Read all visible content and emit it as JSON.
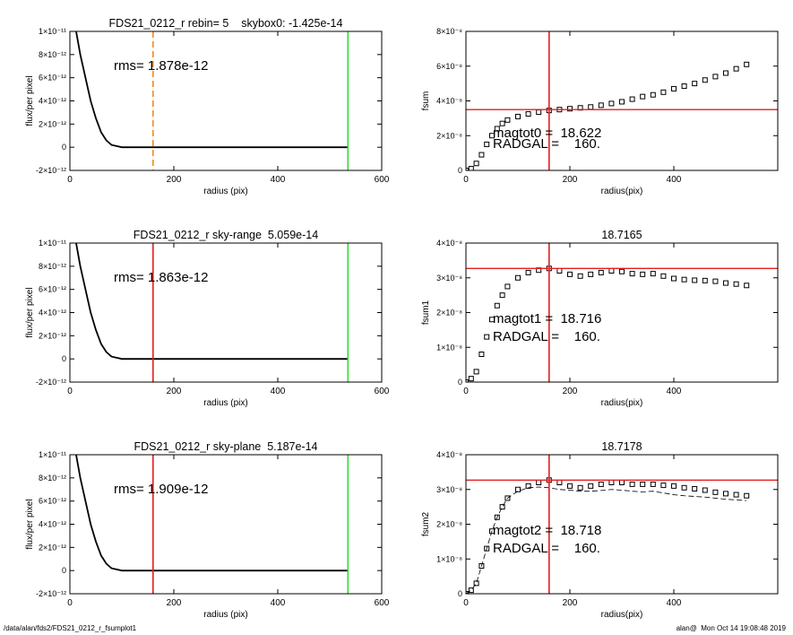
{
  "footer": {
    "left": "/data/alan/fds2/FDS21_0212_r_fsumplot1",
    "right": "alan@  Mon Oct 14 19:08:48 2019"
  },
  "chart_data": [
    {
      "type": "line",
      "title": "FDS21_0212_r rebin= 5    skybox0: -1.425e-14",
      "xlabel": "radius (pix)",
      "ylabel": "flux/per pixel",
      "xlim": [
        0,
        600
      ],
      "xticks": [
        0,
        200,
        400,
        600
      ],
      "ylim": [
        -2e-12,
        1e-11
      ],
      "yticks": [
        {
          "value": -2e-12,
          "label": "-2×10⁻¹²"
        },
        0,
        {
          "value": 2e-12,
          "label": "2×10⁻¹²"
        },
        {
          "value": 4e-12,
          "label": "4×10⁻¹²"
        },
        {
          "value": 6e-12,
          "label": "6×10⁻¹²"
        },
        {
          "value": 8e-12,
          "label": "8×10⁻¹²"
        },
        {
          "value": 1e-11,
          "label": "1×10⁻¹¹"
        }
      ],
      "x": [
        12,
        20,
        30,
        40,
        50,
        60,
        70,
        80,
        90,
        100,
        150,
        200,
        300,
        400,
        500,
        535
      ],
      "series": [
        {
          "color": "#000000",
          "values": [
            1e-11,
            8e-12,
            6e-12,
            4e-12,
            2.5e-12,
            1.3e-12,
            6e-13,
            2e-13,
            1e-13,
            0,
            0,
            0,
            0,
            0,
            0,
            0
          ]
        }
      ],
      "vlines": [
        {
          "value": 160,
          "color": "#f08c1e",
          "dash": true
        },
        {
          "value": 535,
          "color": "#33dd33",
          "dash": false
        }
      ],
      "hlines": [],
      "annotations": [
        "rms= 1.878e-12"
      ]
    },
    {
      "type": "scatter",
      "xlabel": "radius(pix)",
      "ylabel": "fsum",
      "xlim": [
        0,
        600
      ],
      "xticks": [
        0,
        200,
        400
      ],
      "ylim": [
        0,
        8e-08
      ],
      "yticks": [
        0,
        {
          "value": 2e-08,
          "label": "2×10⁻⁸"
        },
        {
          "value": 4e-08,
          "label": "4×10⁻⁸"
        },
        {
          "value": 6e-08,
          "label": "6×10⁻⁸"
        },
        {
          "value": 8e-08,
          "label": "8×10⁻⁸"
        }
      ],
      "x": [
        0,
        10,
        20,
        30,
        40,
        50,
        60,
        70,
        80,
        100,
        120,
        140,
        160,
        180,
        200,
        220,
        240,
        260,
        280,
        300,
        320,
        340,
        360,
        380,
        400,
        420,
        440,
        460,
        480,
        500,
        520,
        540
      ],
      "series": [
        {
          "color": "#000000",
          "marker": "square",
          "values": [
            0,
            1e-09,
            4e-09,
            9e-09,
            1.5e-08,
            2e-08,
            2.4e-08,
            2.7e-08,
            2.9e-08,
            3.1e-08,
            3.25e-08,
            3.35e-08,
            3.45e-08,
            3.5e-08,
            3.55e-08,
            3.6e-08,
            3.65e-08,
            3.75e-08,
            3.85e-08,
            3.95e-08,
            4.1e-08,
            4.25e-08,
            4.35e-08,
            4.5e-08,
            4.7e-08,
            4.85e-08,
            5e-08,
            5.2e-08,
            5.4e-08,
            5.6e-08,
            5.85e-08,
            6.1e-08
          ]
        }
      ],
      "vlines": [
        {
          "value": 160,
          "color": "#e02020",
          "dash": false
        }
      ],
      "hlines": [
        {
          "value": 3.5e-08,
          "color": "#e02020"
        }
      ],
      "annotations": [
        "magtot0 =  18.622",
        "RADGAL =    160."
      ]
    },
    {
      "type": "line",
      "title": "FDS21_0212_r sky-range  5.059e-14",
      "xlabel": "radius (pix)",
      "ylabel": "flux/per pixel",
      "xlim": [
        0,
        600
      ],
      "xticks": [
        0,
        200,
        400,
        600
      ],
      "ylim": [
        -2e-12,
        1e-11
      ],
      "yticks": [
        {
          "value": -2e-12,
          "label": "-2×10⁻¹²"
        },
        0,
        {
          "value": 2e-12,
          "label": "2×10⁻¹²"
        },
        {
          "value": 4e-12,
          "label": "4×10⁻¹²"
        },
        {
          "value": 6e-12,
          "label": "6×10⁻¹²"
        },
        {
          "value": 8e-12,
          "label": "8×10⁻¹²"
        },
        {
          "value": 1e-11,
          "label": "1×10⁻¹¹"
        }
      ],
      "x": [
        12,
        20,
        30,
        40,
        50,
        60,
        70,
        80,
        90,
        100,
        150,
        200,
        300,
        400,
        500,
        535
      ],
      "series": [
        {
          "color": "#000000",
          "values": [
            1e-11,
            8e-12,
            6e-12,
            4e-12,
            2.5e-12,
            1.3e-12,
            6e-13,
            2e-13,
            1e-13,
            0,
            0,
            0,
            0,
            0,
            0,
            0
          ]
        }
      ],
      "vlines": [
        {
          "value": 160,
          "color": "#e02020",
          "dash": false
        },
        {
          "value": 535,
          "color": "#33dd33",
          "dash": false
        }
      ],
      "hlines": [],
      "annotations": [
        "rms= 1.863e-12"
      ]
    },
    {
      "type": "scatter",
      "title": "18.7165",
      "xlabel": "radius(pix)",
      "ylabel": "fsum1",
      "xlim": [
        0,
        600
      ],
      "xticks": [
        0,
        200,
        400
      ],
      "ylim": [
        0,
        4e-08
      ],
      "yticks": [
        0,
        {
          "value": 1e-08,
          "label": "1×10⁻⁸"
        },
        {
          "value": 2e-08,
          "label": "2×10⁻⁸"
        },
        {
          "value": 3e-08,
          "label": "3×10⁻⁸"
        },
        {
          "value": 4e-08,
          "label": "4×10⁻⁸"
        }
      ],
      "x": [
        0,
        10,
        20,
        30,
        40,
        50,
        60,
        70,
        80,
        100,
        120,
        140,
        160,
        180,
        200,
        220,
        240,
        260,
        280,
        300,
        320,
        340,
        360,
        380,
        400,
        420,
        440,
        460,
        480,
        500,
        520,
        540
      ],
      "series": [
        {
          "color": "#000000",
          "marker": "square",
          "values": [
            0,
            1e-09,
            3e-09,
            8e-09,
            1.3e-08,
            1.8e-08,
            2.2e-08,
            2.5e-08,
            2.75e-08,
            3e-08,
            3.15e-08,
            3.22e-08,
            3.27e-08,
            3.2e-08,
            3.1e-08,
            3.05e-08,
            3.1e-08,
            3.15e-08,
            3.2e-08,
            3.18e-08,
            3.12e-08,
            3.1e-08,
            3.12e-08,
            3.05e-08,
            2.98e-08,
            2.95e-08,
            2.93e-08,
            2.92e-08,
            2.9e-08,
            2.85e-08,
            2.82e-08,
            2.78e-08
          ]
        }
      ],
      "vlines": [
        {
          "value": 160,
          "color": "#e02020",
          "dash": false
        }
      ],
      "hlines": [
        {
          "value": 3.27e-08,
          "color": "#e02020"
        }
      ],
      "annotations": [
        "magtot1 =  18.716",
        "RADGAL =    160."
      ]
    },
    {
      "type": "line",
      "title": "FDS21_0212_r sky-plane  5.187e-14",
      "xlabel": "radius (pix)",
      "ylabel": "flux/per pixel",
      "xlim": [
        0,
        600
      ],
      "xticks": [
        0,
        200,
        400,
        600
      ],
      "ylim": [
        -2e-12,
        1e-11
      ],
      "yticks": [
        {
          "value": -2e-12,
          "label": "-2×10⁻¹²"
        },
        0,
        {
          "value": 2e-12,
          "label": "2×10⁻¹²"
        },
        {
          "value": 4e-12,
          "label": "4×10⁻¹²"
        },
        {
          "value": 6e-12,
          "label": "6×10⁻¹²"
        },
        {
          "value": 8e-12,
          "label": "8×10⁻¹²"
        },
        {
          "value": 1e-11,
          "label": "1×10⁻¹¹"
        }
      ],
      "x": [
        12,
        20,
        30,
        40,
        50,
        60,
        70,
        80,
        90,
        100,
        150,
        200,
        300,
        400,
        500,
        535
      ],
      "series": [
        {
          "color": "#000000",
          "values": [
            1e-11,
            8e-12,
            6e-12,
            4e-12,
            2.5e-12,
            1.3e-12,
            6e-13,
            2e-13,
            1e-13,
            0,
            0,
            0,
            0,
            0,
            0,
            0
          ]
        }
      ],
      "vlines": [
        {
          "value": 160,
          "color": "#e02020",
          "dash": false
        },
        {
          "value": 535,
          "color": "#33dd33",
          "dash": false
        }
      ],
      "hlines": [],
      "annotations": [
        "rms= 1.909e-12"
      ]
    },
    {
      "type": "scatter",
      "title": "18.7178",
      "xlabel": "radius(pix)",
      "ylabel": "fsum2",
      "xlim": [
        0,
        600
      ],
      "xticks": [
        0,
        200,
        400
      ],
      "ylim": [
        0,
        4e-08
      ],
      "yticks": [
        0,
        {
          "value": 1e-08,
          "label": "1×10⁻⁸"
        },
        {
          "value": 2e-08,
          "label": "2×10⁻⁸"
        },
        {
          "value": 3e-08,
          "label": "3×10⁻⁸"
        },
        {
          "value": 4e-08,
          "label": "4×10⁻⁸"
        }
      ],
      "x": [
        0,
        10,
        20,
        30,
        40,
        50,
        60,
        70,
        80,
        100,
        120,
        140,
        160,
        180,
        200,
        220,
        240,
        260,
        280,
        300,
        320,
        340,
        360,
        380,
        400,
        420,
        440,
        460,
        480,
        500,
        520,
        540
      ],
      "series": [
        {
          "color": "#000000",
          "marker": "square",
          "values": [
            0,
            1e-09,
            3e-09,
            8e-09,
            1.3e-08,
            1.8e-08,
            2.2e-08,
            2.5e-08,
            2.75e-08,
            3e-08,
            3.1e-08,
            3.2e-08,
            3.27e-08,
            3.2e-08,
            3.1e-08,
            3.05e-08,
            3.1e-08,
            3.15e-08,
            3.2e-08,
            3.2e-08,
            3.15e-08,
            3.15e-08,
            3.15e-08,
            3.12e-08,
            3.1e-08,
            3.05e-08,
            3.02e-08,
            2.98e-08,
            2.92e-08,
            2.88e-08,
            2.85e-08,
            2.82e-08
          ]
        },
        {
          "color": "#000000",
          "dash": true,
          "values": [
            0,
            1e-09,
            3e-09,
            8e-09,
            1.3e-08,
            1.8e-08,
            2.2e-08,
            2.5e-08,
            2.75e-08,
            2.95e-08,
            3.05e-08,
            3.07e-08,
            3.05e-08,
            3e-08,
            2.98e-08,
            2.95e-08,
            2.95e-08,
            2.97e-08,
            3e-08,
            2.98e-08,
            2.95e-08,
            2.93e-08,
            2.95e-08,
            2.9e-08,
            2.85e-08,
            2.82e-08,
            2.8e-08,
            2.78e-08,
            2.75e-08,
            2.72e-08,
            2.7e-08,
            2.68e-08
          ]
        }
      ],
      "vlines": [
        {
          "value": 160,
          "color": "#e02020",
          "dash": false
        }
      ],
      "hlines": [
        {
          "value": 3.27e-08,
          "color": "#e02020"
        }
      ],
      "annotations": [
        "magtot2 =  18.718",
        "RADGAL =    160."
      ]
    }
  ]
}
